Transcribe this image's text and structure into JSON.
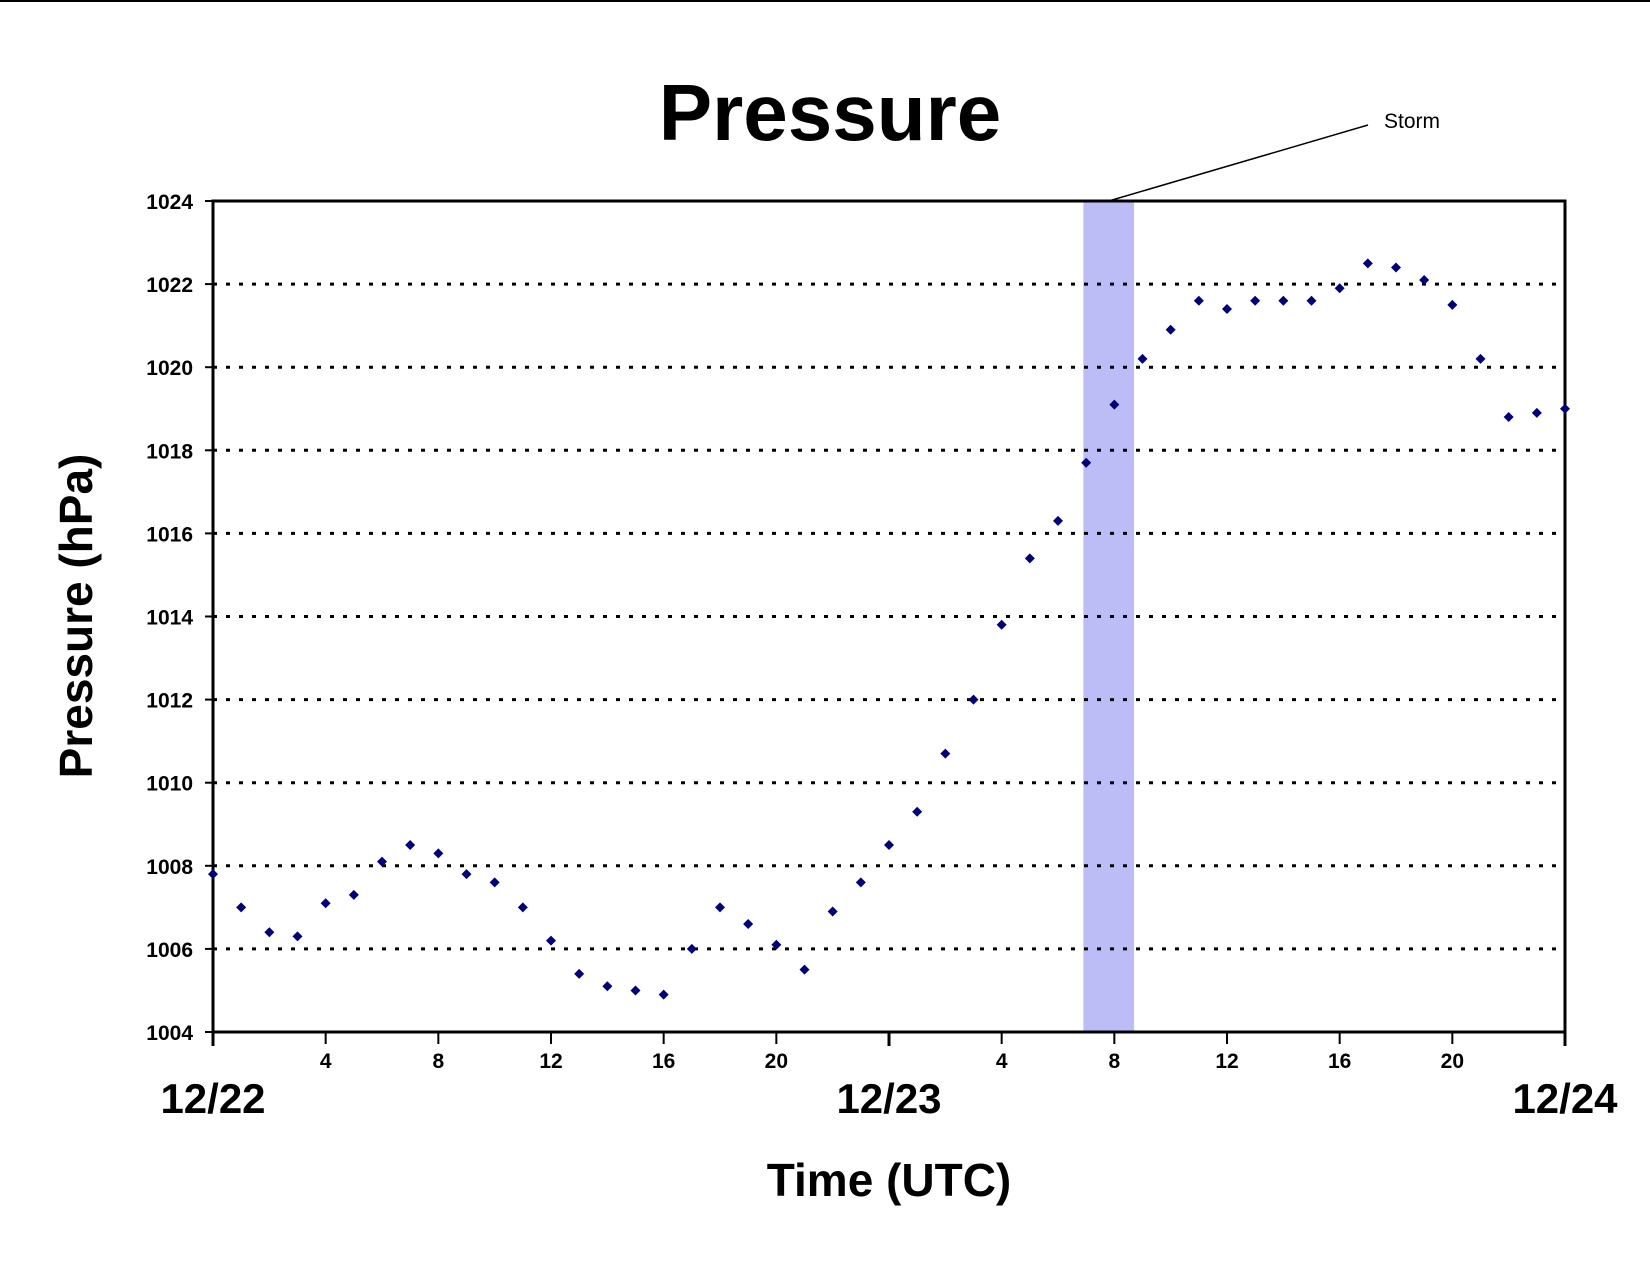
{
  "chart_data": {
    "type": "scatter",
    "title": "Pressure",
    "xlabel": "Time (UTC)",
    "ylabel": "Pressure (hPa)",
    "x_unit": "hour",
    "xlim": [
      0,
      48
    ],
    "ylim": [
      1004,
      1024
    ],
    "y_ticks": [
      1004,
      1006,
      1008,
      1010,
      1012,
      1014,
      1016,
      1018,
      1020,
      1022,
      1024
    ],
    "x_hour_ticks": [
      {
        "x": 4,
        "label": "4"
      },
      {
        "x": 8,
        "label": "8"
      },
      {
        "x": 12,
        "label": "12"
      },
      {
        "x": 16,
        "label": "16"
      },
      {
        "x": 20,
        "label": "20"
      },
      {
        "x": 28,
        "label": "4"
      },
      {
        "x": 32,
        "label": "8"
      },
      {
        "x": 36,
        "label": "12"
      },
      {
        "x": 40,
        "label": "16"
      },
      {
        "x": 44,
        "label": "20"
      }
    ],
    "x_day_labels": [
      {
        "x": 0,
        "label": "12/22"
      },
      {
        "x": 24,
        "label": "12/23"
      },
      {
        "x": 48,
        "label": "12/24"
      }
    ],
    "grid": "horizontal-dotted",
    "marker_color": "#00007a",
    "highlight": {
      "label": "Storm",
      "x_start": 30.9,
      "x_end": 32.7,
      "color": "#bcbcf7"
    },
    "points": [
      [
        0,
        1007.8
      ],
      [
        1,
        1007.0
      ],
      [
        2,
        1006.4
      ],
      [
        3,
        1006.3
      ],
      [
        4,
        1007.1
      ],
      [
        5,
        1007.3
      ],
      [
        6,
        1008.1
      ],
      [
        7,
        1008.5
      ],
      [
        8,
        1008.3
      ],
      [
        9,
        1007.8
      ],
      [
        10,
        1007.6
      ],
      [
        11,
        1007.0
      ],
      [
        12,
        1006.2
      ],
      [
        13,
        1005.4
      ],
      [
        14,
        1005.1
      ],
      [
        15,
        1005.0
      ],
      [
        16,
        1004.9
      ],
      [
        17,
        1006.0
      ],
      [
        18,
        1007.0
      ],
      [
        19,
        1006.6
      ],
      [
        20,
        1006.1
      ],
      [
        21,
        1005.5
      ],
      [
        22,
        1006.9
      ],
      [
        23,
        1007.6
      ],
      [
        24,
        1008.5
      ],
      [
        25,
        1009.3
      ],
      [
        26,
        1010.7
      ],
      [
        27,
        1012.0
      ],
      [
        28,
        1013.8
      ],
      [
        29,
        1015.4
      ],
      [
        30,
        1016.3
      ],
      [
        31,
        1017.7
      ],
      [
        32,
        1019.1
      ],
      [
        33,
        1020.2
      ],
      [
        34,
        1020.9
      ],
      [
        35,
        1021.6
      ],
      [
        36,
        1021.4
      ],
      [
        37,
        1021.6
      ],
      [
        38,
        1021.6
      ],
      [
        39,
        1021.6
      ],
      [
        40,
        1021.9
      ],
      [
        41,
        1022.5
      ],
      [
        42,
        1022.4
      ],
      [
        43,
        1022.1
      ],
      [
        44,
        1021.5
      ],
      [
        45,
        1020.2
      ],
      [
        46,
        1018.8
      ],
      [
        47,
        1018.9
      ],
      [
        48,
        1019.0
      ]
    ]
  }
}
